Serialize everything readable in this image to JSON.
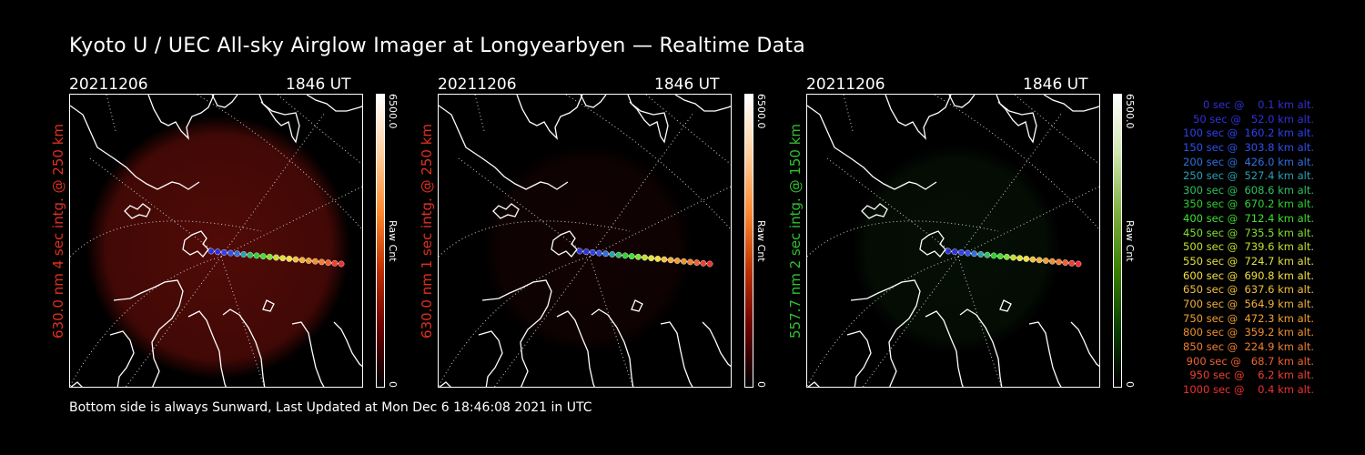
{
  "title": "Kyoto U / UEC All-sky Airglow Imager at Longyearbyen — Realtime Data",
  "footer": "Bottom side is always Sunward, Last Updated at Mon Dec  6 18:46:08 2021 in UTC",
  "colors": {
    "red_glow": "#5a0c08",
    "green_glow": "#0f2a0f",
    "red_label": "#e03020",
    "green_label": "#30c030"
  },
  "panels": [
    {
      "date": "20211206",
      "time": "1846 UT",
      "label": "630.0 nm  4 sec intg. @ 250 km",
      "cbar_max": "6500.0",
      "cbar_unit": "Raw Cnt",
      "cbar_min": "0",
      "glow_strength": 0.9
    },
    {
      "date": "20211206",
      "time": "1846 UT",
      "label": "630.0 nm  1 sec intg. @ 250 km",
      "cbar_max": "6500.0",
      "cbar_unit": "Raw Cnt",
      "cbar_min": "0",
      "glow_strength": 0.3
    },
    {
      "date": "20211206",
      "time": "1846 UT",
      "label": "557.7 nm  2 sec intg. @ 150 km",
      "cbar_max": "6500.0",
      "cbar_unit": "Raw Cnt",
      "cbar_min": "0",
      "glow_strength": 0.35
    }
  ],
  "legend": [
    {
      "text": "   0 sec @    0.1 km alt.",
      "color": "#3030d0"
    },
    {
      "text": "  50 sec @   52.0 km alt.",
      "color": "#3030e0"
    },
    {
      "text": " 100 sec @  160.2 km alt.",
      "color": "#3040f0"
    },
    {
      "text": " 150 sec @  303.8 km alt.",
      "color": "#3050f0"
    },
    {
      "text": " 200 sec @  426.0 km alt.",
      "color": "#3070e0"
    },
    {
      "text": " 250 sec @  527.4 km alt.",
      "color": "#2aa0b0"
    },
    {
      "text": " 300 sec @  608.6 km alt.",
      "color": "#30c060"
    },
    {
      "text": " 350 sec @  670.2 km alt.",
      "color": "#30d030"
    },
    {
      "text": " 400 sec @  712.4 km alt.",
      "color": "#40e030"
    },
    {
      "text": " 450 sec @  735.5 km alt.",
      "color": "#80e030"
    },
    {
      "text": " 500 sec @  739.6 km alt.",
      "color": "#c0e030"
    },
    {
      "text": " 550 sec @  724.7 km alt.",
      "color": "#e0e040"
    },
    {
      "text": " 600 sec @  690.8 km alt.",
      "color": "#f0e040"
    },
    {
      "text": " 650 sec @  637.6 km alt.",
      "color": "#f0c040"
    },
    {
      "text": " 700 sec @  564.9 km alt.",
      "color": "#f0b040"
    },
    {
      "text": " 750 sec @  472.3 km alt.",
      "color": "#f0a030"
    },
    {
      "text": " 800 sec @  359.2 km alt.",
      "color": "#f09030"
    },
    {
      "text": " 850 sec @  224.9 km alt.",
      "color": "#f08030"
    },
    {
      "text": " 900 sec @   68.7 km alt.",
      "color": "#f06030"
    },
    {
      "text": " 950 sec @    6.2 km alt.",
      "color": "#f04030"
    },
    {
      "text": "1000 sec @    0.4 km alt.",
      "color": "#f03030"
    }
  ]
}
